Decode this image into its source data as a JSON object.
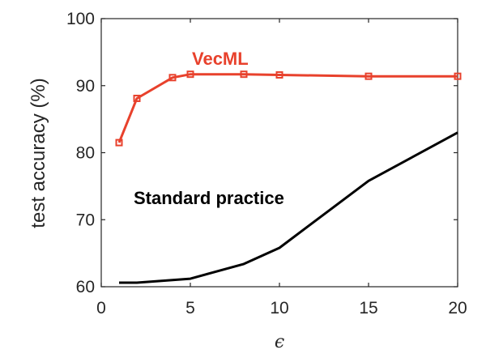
{
  "chart_data": {
    "type": "line",
    "xlabel": "ϵ",
    "ylabel": "test accuracy (%)",
    "xlim": [
      0,
      20
    ],
    "ylim": [
      60,
      100
    ],
    "xticks": [
      0,
      5,
      10,
      15,
      20
    ],
    "yticks": [
      60,
      70,
      80,
      90,
      100
    ],
    "grid": false,
    "series": [
      {
        "name": "VecML",
        "color": "#e8412c",
        "marker": "square",
        "x": [
          1,
          2,
          4,
          5,
          8,
          10,
          15,
          20
        ],
        "y": [
          81.5,
          88.1,
          91.2,
          91.7,
          91.7,
          91.6,
          91.4,
          91.4
        ]
      },
      {
        "name": "Standard practice",
        "color": "#000000",
        "marker": "none",
        "x": [
          1,
          2,
          4,
          5,
          8,
          10,
          15,
          20
        ],
        "y": [
          60.6,
          60.6,
          61.0,
          61.2,
          63.4,
          65.8,
          75.8,
          83.0
        ]
      }
    ]
  }
}
